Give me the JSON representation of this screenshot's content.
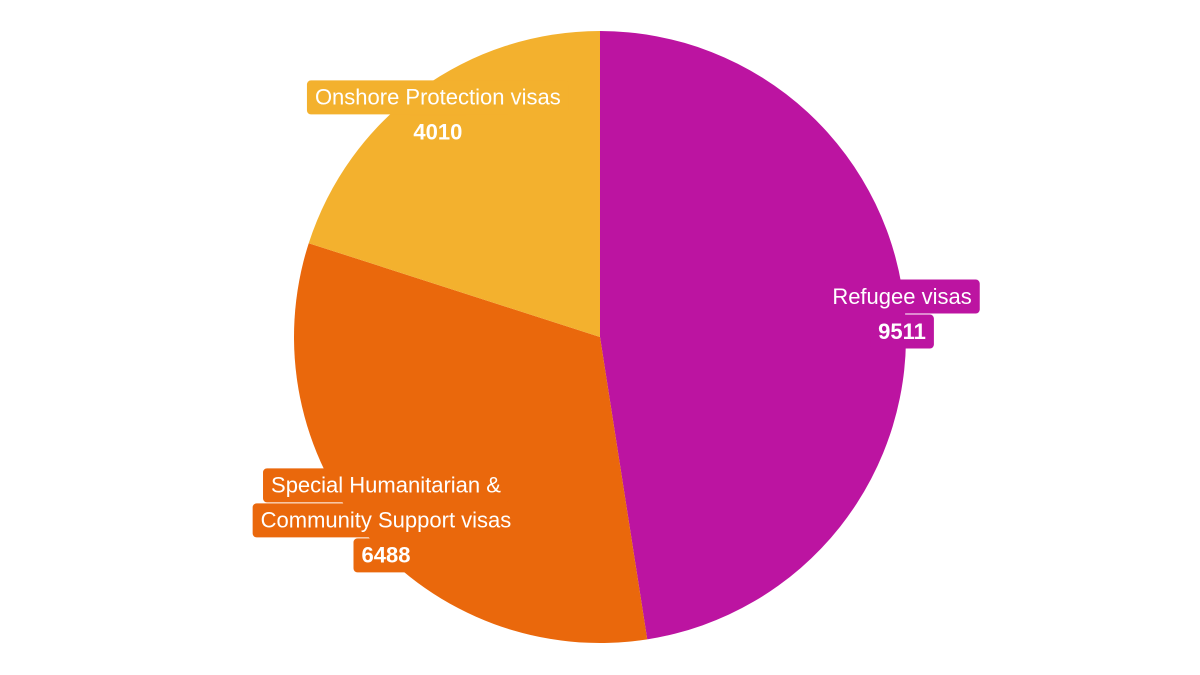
{
  "chart_data": {
    "type": "pie",
    "title": "",
    "start_angle_deg": 0,
    "direction": "clockwise",
    "slices": [
      {
        "name_lines": [
          "Refugee visas"
        ],
        "value": 9511,
        "value_label": "9511",
        "color": "#BC14A1"
      },
      {
        "name_lines": [
          "Special Humanitarian &",
          "Community Support visas"
        ],
        "value": 6488,
        "value_label": "6488",
        "color": "#EA680C"
      },
      {
        "name_lines": [
          "Onshore Protection visas"
        ],
        "value": 4010,
        "value_label": "4010",
        "color": "#F3B12E"
      }
    ]
  }
}
